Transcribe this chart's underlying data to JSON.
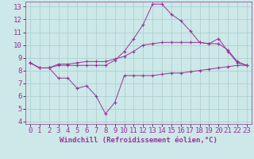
{
  "xlabel": "Windchill (Refroidissement éolien,°C)",
  "background_color": "#cce8e8",
  "grid_color": "#aacccc",
  "line_color": "#993399",
  "spine_color": "#993399",
  "xlim": [
    -0.5,
    23.5
  ],
  "ylim": [
    3.8,
    13.4
  ],
  "xticks": [
    0,
    1,
    2,
    3,
    4,
    5,
    6,
    7,
    8,
    9,
    10,
    11,
    12,
    13,
    14,
    15,
    16,
    17,
    18,
    19,
    20,
    21,
    22,
    23
  ],
  "yticks": [
    4,
    5,
    6,
    7,
    8,
    9,
    10,
    11,
    12,
    13
  ],
  "line1_x": [
    0,
    1,
    2,
    3,
    4,
    5,
    6,
    7,
    8,
    9,
    10,
    11,
    12,
    13,
    14,
    15,
    16,
    17,
    18,
    19,
    20,
    21,
    22,
    23
  ],
  "line1_y": [
    8.6,
    8.2,
    8.2,
    8.4,
    8.4,
    8.4,
    8.4,
    8.4,
    8.4,
    8.8,
    9.5,
    10.5,
    11.6,
    13.2,
    13.2,
    12.4,
    11.9,
    11.1,
    10.2,
    10.1,
    10.5,
    9.5,
    8.6,
    8.4
  ],
  "line2_x": [
    0,
    1,
    2,
    3,
    4,
    5,
    6,
    7,
    8,
    9,
    10,
    11,
    12,
    13,
    14,
    15,
    16,
    17,
    18,
    19,
    20,
    21,
    22,
    23
  ],
  "line2_y": [
    8.6,
    8.2,
    8.2,
    8.5,
    8.5,
    8.6,
    8.7,
    8.7,
    8.7,
    8.9,
    9.1,
    9.5,
    10.0,
    10.1,
    10.2,
    10.2,
    10.2,
    10.2,
    10.2,
    10.1,
    10.1,
    9.6,
    8.7,
    8.4
  ],
  "line3_x": [
    0,
    1,
    2,
    3,
    4,
    5,
    6,
    7,
    8,
    9,
    10,
    11,
    12,
    13,
    14,
    15,
    16,
    17,
    18,
    19,
    20,
    21,
    22,
    23
  ],
  "line3_y": [
    8.6,
    8.2,
    8.2,
    7.4,
    7.4,
    6.6,
    6.8,
    6.0,
    4.6,
    5.5,
    7.6,
    7.6,
    7.6,
    7.6,
    7.7,
    7.8,
    7.8,
    7.9,
    8.0,
    8.1,
    8.2,
    8.3,
    8.4,
    8.4
  ],
  "tick_fontsize": 6.5,
  "xlabel_fontsize": 6.5
}
